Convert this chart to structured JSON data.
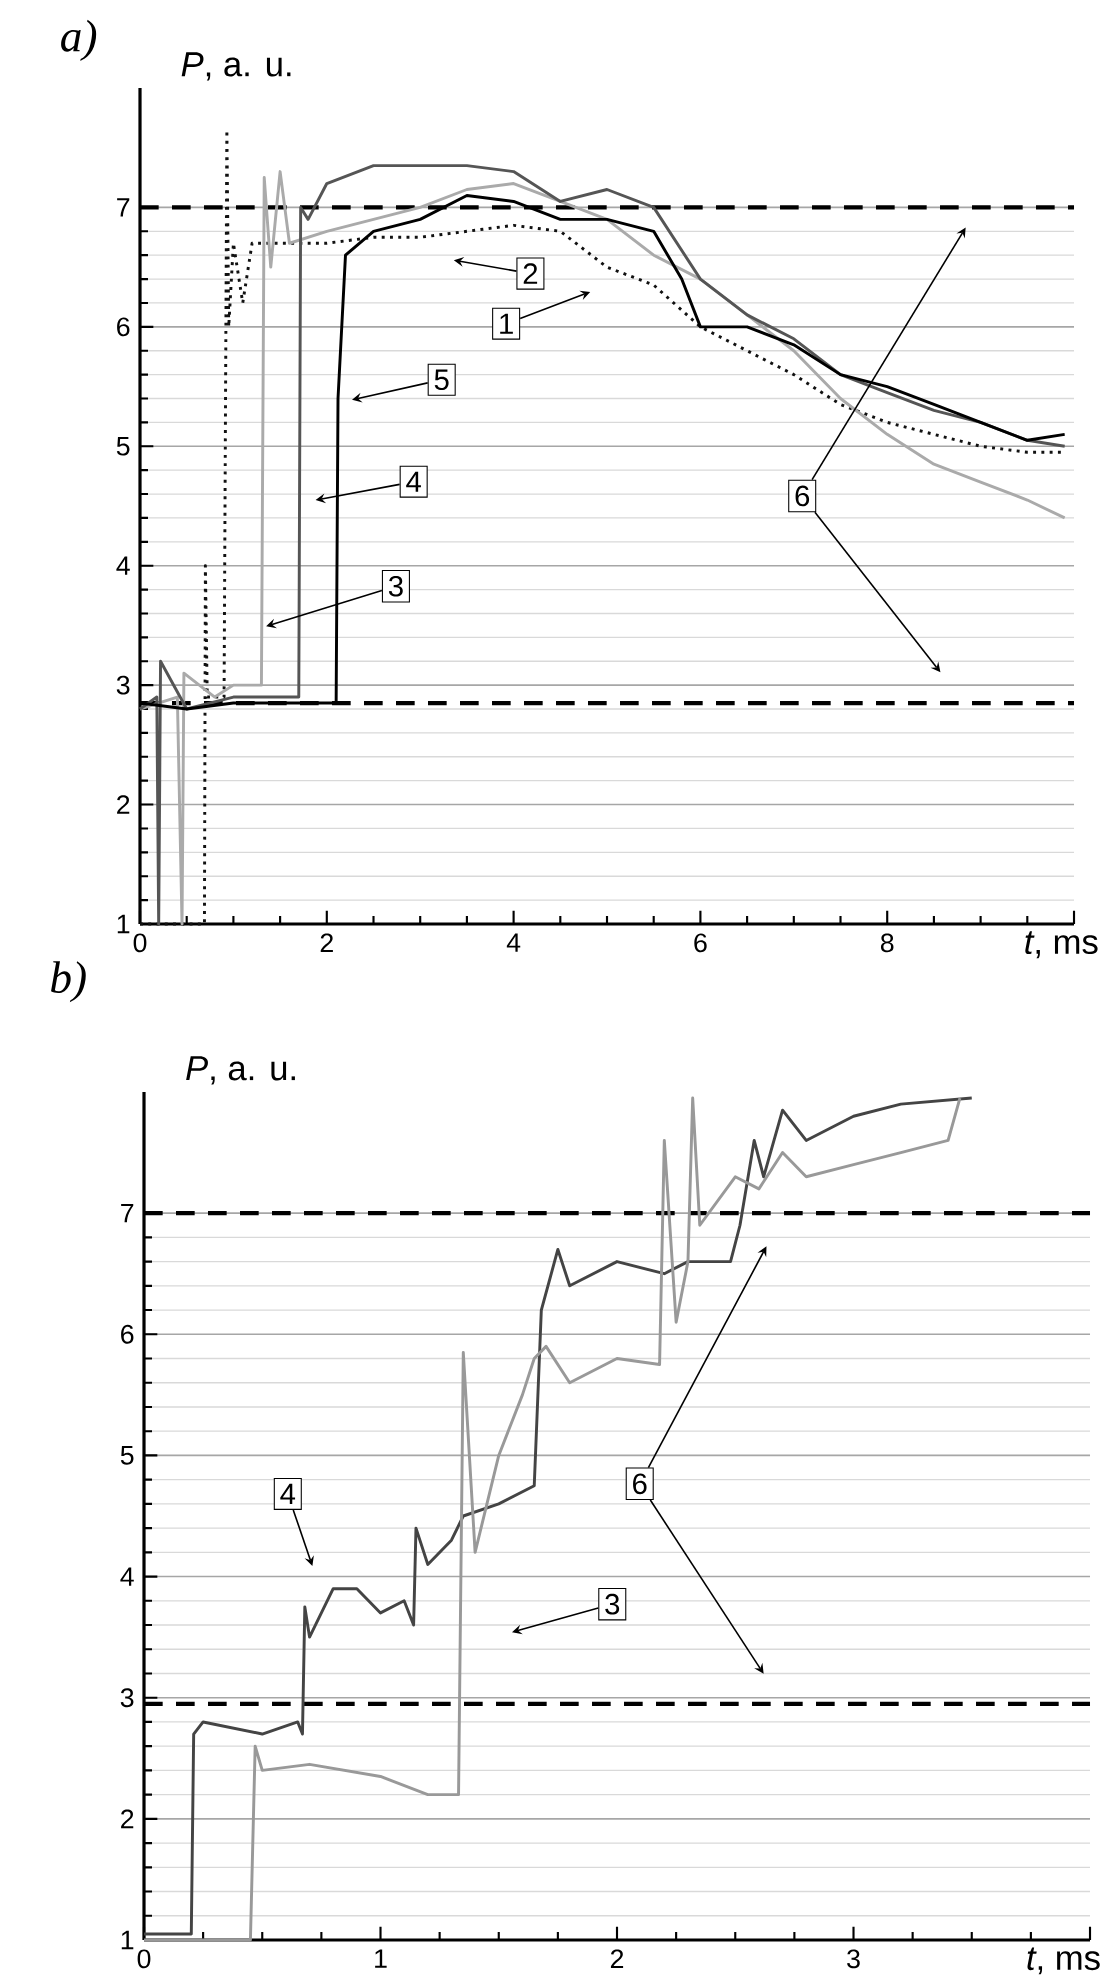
{
  "chart_data": [
    {
      "type": "line",
      "title": "a)",
      "xlabel": "*t*, ms",
      "ylabel": "*P*, a. u.",
      "xlim": [
        0,
        10
      ],
      "ylim": [
        1,
        8
      ],
      "xticks": [
        0,
        2,
        4,
        6,
        8,
        {
          "value": 10,
          "label": null
        }
      ],
      "yticks": [
        1,
        2,
        3,
        4,
        5,
        6,
        7
      ],
      "grid": "y",
      "marker": "none",
      "series": [
        {
          "color": "#111111",
          "line_style": "dotted",
          "x": [
            0,
            0.69,
            0.7,
            0.72,
            0.9,
            0.93,
            0.95,
            1.0,
            1.1,
            1.2,
            1.5,
            2.0,
            2.5,
            3.0,
            3.5,
            4.0,
            4.5,
            5.0,
            5.5,
            6.0,
            6.5,
            7.0,
            7.5,
            8.0,
            8.5,
            9.0,
            9.5,
            9.9
          ],
          "values": [
            1.0,
            1.0,
            4.0,
            2.9,
            2.9,
            7.65,
            6.0,
            6.7,
            6.2,
            6.7,
            6.7,
            6.7,
            6.75,
            6.75,
            6.8,
            6.85,
            6.8,
            6.5,
            6.35,
            6.0,
            5.8,
            5.6,
            5.35,
            5.2,
            5.1,
            5.0,
            4.95,
            4.95
          ]
        },
        {
          "color": "#aaaaaa",
          "line_style": "solid",
          "x": [
            0,
            0.4,
            0.45,
            0.47,
            0.8,
            1.0,
            1.3,
            1.33,
            1.4,
            1.5,
            1.6,
            2.0,
            2.5,
            3.0,
            3.5,
            4.0,
            4.5,
            5.0,
            5.5,
            6.0,
            6.5,
            7.0,
            7.5,
            8.0,
            8.5,
            9.0,
            9.5,
            9.9
          ],
          "values": [
            2.8,
            2.9,
            1.0,
            3.1,
            2.9,
            3.0,
            3.0,
            7.25,
            6.5,
            7.3,
            6.7,
            6.8,
            6.9,
            7.0,
            7.15,
            7.2,
            7.05,
            6.9,
            6.6,
            6.4,
            6.1,
            5.8,
            5.4,
            5.1,
            4.85,
            4.7,
            4.55,
            4.4
          ]
        },
        {
          "color": "#555555",
          "line_style": "solid",
          "x": [
            0,
            0.18,
            0.2,
            0.22,
            0.5,
            1.0,
            1.5,
            1.7,
            1.72,
            1.8,
            2.0,
            2.5,
            3.0,
            3.5,
            4.0,
            4.5,
            5.0,
            5.5,
            6.0,
            6.5,
            7.0,
            7.5,
            8.0,
            8.5,
            9.0,
            9.5,
            9.9
          ],
          "values": [
            2.8,
            2.9,
            1.0,
            3.2,
            2.8,
            2.9,
            2.9,
            2.9,
            7.0,
            6.9,
            7.2,
            7.35,
            7.35,
            7.35,
            7.3,
            7.05,
            7.15,
            7.0,
            6.4,
            6.1,
            5.9,
            5.6,
            5.45,
            5.3,
            5.2,
            5.05,
            5.0
          ]
        },
        {
          "color": "#000000",
          "line_style": "solid",
          "x": [
            0,
            0.5,
            1.0,
            1.5,
            2.1,
            2.12,
            2.2,
            2.5,
            3.0,
            3.5,
            4.0,
            4.5,
            5.0,
            5.5,
            5.8,
            6.0,
            6.5,
            7.0,
            7.5,
            8.0,
            8.5,
            9.0,
            9.5,
            9.9
          ],
          "values": [
            2.85,
            2.8,
            2.85,
            2.85,
            2.85,
            5.4,
            6.6,
            6.8,
            6.9,
            7.1,
            7.05,
            6.9,
            6.9,
            6.8,
            6.4,
            6.0,
            6.0,
            5.85,
            5.6,
            5.5,
            5.35,
            5.2,
            5.05,
            5.1
          ]
        }
      ],
      "ref_lines": [
        {
          "axis": "y",
          "value": 7,
          "color": "#000000",
          "line_style": "dashed"
        },
        {
          "axis": "y",
          "value": 2.85,
          "color": "#000000",
          "line_style": "dashed"
        }
      ],
      "annotations": [
        "1",
        "2",
        "5",
        "4",
        "3",
        "6"
      ]
    },
    {
      "type": "line",
      "title": "b)",
      "xlabel": "*t*, ms",
      "ylabel": "*P*, a. u.",
      "xlim": [
        0,
        4
      ],
      "ylim": [
        1,
        8
      ],
      "xticks": [
        0,
        1,
        2,
        3,
        {
          "value": 4,
          "label": null
        }
      ],
      "yticks": [
        1,
        2,
        3,
        4,
        5,
        6,
        7
      ],
      "grid": "y",
      "marker": "none",
      "series": [
        {
          "color": "#444444",
          "line_style": "solid",
          "x": [
            0,
            0.2,
            0.21,
            0.25,
            0.5,
            0.65,
            0.67,
            0.68,
            0.7,
            0.8,
            0.9,
            1.0,
            1.1,
            1.14,
            1.15,
            1.2,
            1.3,
            1.35,
            1.5,
            1.65,
            1.68,
            1.75,
            1.8,
            2.0,
            2.2,
            2.3,
            2.48,
            2.52,
            2.58,
            2.62,
            2.7,
            2.8,
            3.0,
            3.2,
            3.5
          ],
          "values": [
            1.05,
            1.05,
            2.7,
            2.8,
            2.7,
            2.8,
            2.7,
            3.75,
            3.5,
            3.9,
            3.9,
            3.7,
            3.8,
            3.6,
            4.4,
            4.1,
            4.3,
            4.5,
            4.6,
            4.75,
            6.2,
            6.7,
            6.4,
            6.6,
            6.5,
            6.6,
            6.6,
            6.9,
            7.6,
            7.3,
            7.85,
            7.6,
            7.8,
            7.9,
            7.95
          ]
        },
        {
          "color": "#999999",
          "line_style": "solid",
          "x": [
            0,
            0.45,
            0.47,
            0.5,
            0.7,
            1.0,
            1.2,
            1.33,
            1.35,
            1.4,
            1.5,
            1.6,
            1.65,
            1.7,
            1.8,
            2.0,
            2.18,
            2.2,
            2.25,
            2.3,
            2.32,
            2.35,
            2.5,
            2.6,
            2.7,
            2.8,
            3.0,
            3.2,
            3.4,
            3.45
          ],
          "values": [
            1.0,
            1.0,
            2.6,
            2.4,
            2.45,
            2.35,
            2.2,
            2.2,
            5.85,
            4.2,
            5.0,
            5.5,
            5.8,
            5.9,
            5.6,
            5.8,
            5.75,
            7.6,
            6.1,
            6.6,
            7.95,
            6.9,
            7.3,
            7.2,
            7.5,
            7.3,
            7.4,
            7.5,
            7.6,
            7.95
          ]
        }
      ],
      "ref_lines": [
        {
          "axis": "y",
          "value": 7,
          "color": "#000000",
          "line_style": "dashed"
        },
        {
          "axis": "y",
          "value": 2.95,
          "color": "#000000",
          "line_style": "dashed"
        }
      ],
      "annotations": [
        "4",
        "3",
        "6"
      ]
    }
  ]
}
